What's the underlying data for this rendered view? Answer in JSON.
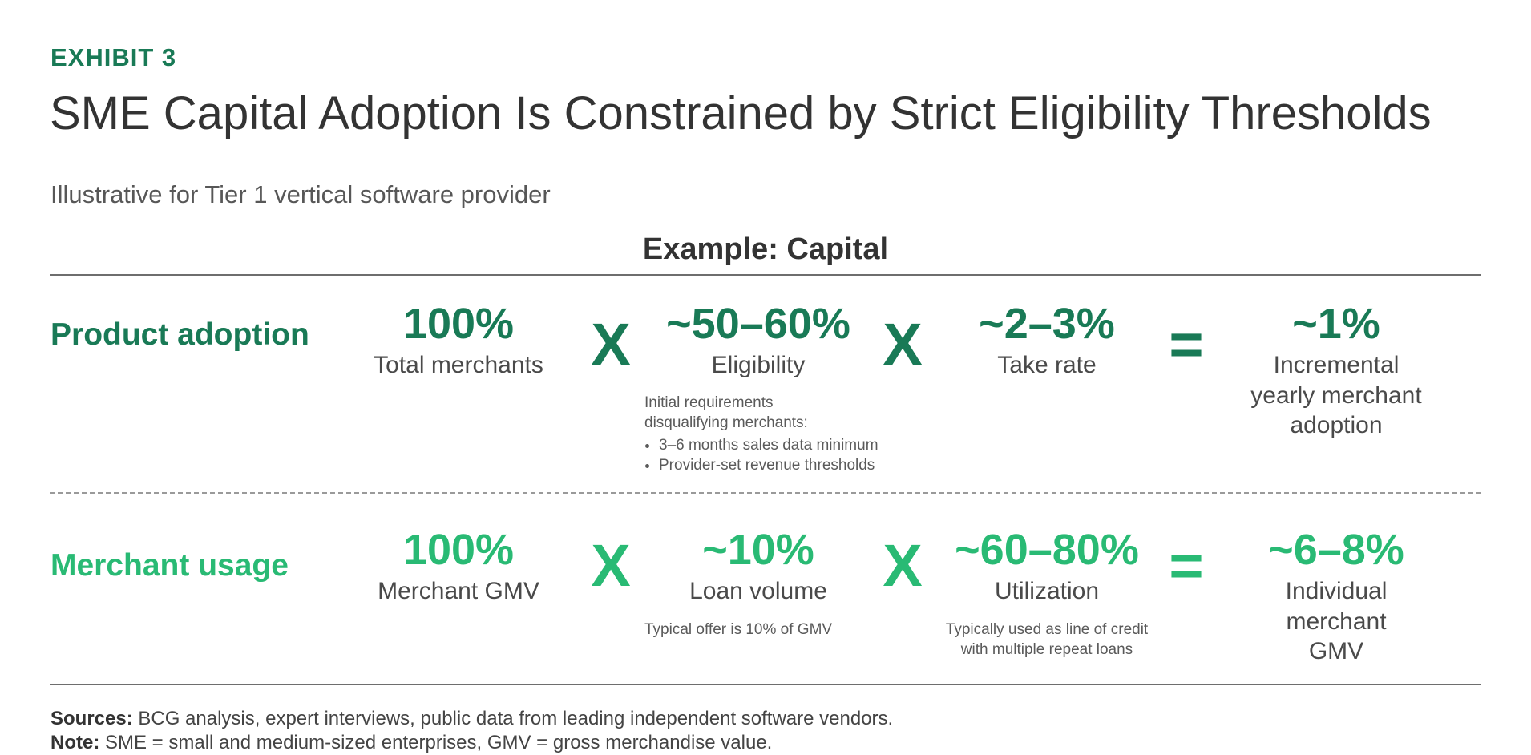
{
  "header": {
    "exhibit": "EXHIBIT 3",
    "title": "SME Capital Adoption Is Constrained by Strict Eligibility Thresholds",
    "subtitle": "Illustrative for Tier 1 vertical software provider",
    "example": "Example: Capital"
  },
  "colors": {
    "dark_green": "#197a56",
    "bright_green": "#29ba74",
    "text": "#333333"
  },
  "rows": [
    {
      "label": "Product adoption",
      "terms": [
        {
          "value": "100%",
          "label": "Total merchants"
        },
        {
          "value": "~50–60%",
          "label": "Eligibility"
        },
        {
          "value": "~2–3%",
          "label": "Take rate"
        },
        {
          "value": "~1%",
          "label": "Incremental yearly merchant adoption"
        }
      ],
      "operators": [
        "X",
        "X",
        "="
      ],
      "notes": {
        "eligibility_intro": "Initial requirements disqualifying merchants:",
        "eligibility_bullets": [
          "3–6 months sales data minimum",
          "Provider-set revenue thresholds"
        ]
      }
    },
    {
      "label": "Merchant usage",
      "terms": [
        {
          "value": "100%",
          "label": "Merchant GMV"
        },
        {
          "value": "~10%",
          "label": "Loan volume"
        },
        {
          "value": "~60–80%",
          "label": "Utilization"
        },
        {
          "value": "~6–8%",
          "label": "Individual merchant GMV"
        }
      ],
      "operators": [
        "X",
        "X",
        "="
      ],
      "notes": {
        "loan": "Typical offer is 10% of GMV",
        "utilization": "Typically used as line of credit with multiple repeat loans"
      }
    }
  ],
  "footer": {
    "sources_label": "Sources:",
    "sources_text": "BCG analysis, expert interviews, public data from leading independent software vendors.",
    "note_label": "Note:",
    "note_text": "SME = small and medium-sized enterprises, GMV = gross merchandise value."
  }
}
